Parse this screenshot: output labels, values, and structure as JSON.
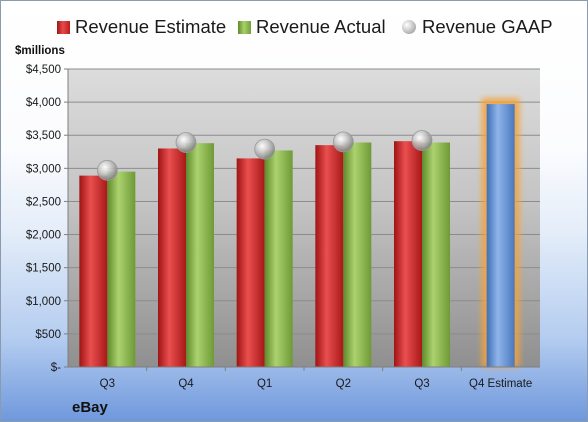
{
  "chart_data": {
    "type": "bar",
    "categories": [
      "Q3",
      "Q4",
      "Q1",
      "Q2",
      "Q3",
      "Q4 Estimate"
    ],
    "series": [
      {
        "name": "Revenue Estimate",
        "values": [
          2890,
          3300,
          3150,
          3350,
          3410,
          3970
        ],
        "color": "#d42b2b"
      },
      {
        "name": "Revenue Actual",
        "values": [
          2950,
          3380,
          3270,
          3390,
          3390,
          null
        ],
        "color": "#8db54b"
      },
      {
        "name": "Revenue GAAP",
        "values": [
          2970,
          3390,
          3290,
          3400,
          3420,
          null
        ],
        "color": "#b0b0b0"
      }
    ],
    "estimate_color": "#6f9bd8",
    "estimate_glow": "#f5a33a",
    "ylabel": "$millions",
    "ylim": [
      0,
      4500
    ],
    "ytick_step": 500,
    "ytick_labels": [
      "$-",
      "$500",
      "$1,000",
      "$1,500",
      "$2,000",
      "$2,500",
      "$3,000",
      "$3,500",
      "$4,000",
      "$4,500"
    ],
    "grid": true,
    "legend": "top"
  },
  "legend": {
    "estimate": "Revenue Estimate",
    "actual": "Revenue Actual",
    "gaap": "Revenue GAAP"
  },
  "unit_label": "$millions",
  "company": "eBay"
}
